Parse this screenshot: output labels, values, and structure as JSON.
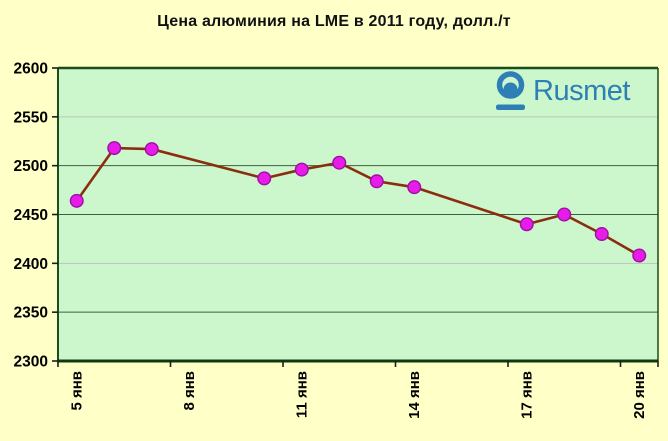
{
  "logo": {
    "text": "Rusmet"
  },
  "colors": {
    "page_bg": "#ffffc8",
    "plot_bg": "#ccf7cd",
    "plot_border": "#1a4d1a",
    "axis_line": "#10380f",
    "gridline_dark": "#3f5f3f",
    "gridline_light": "#b7c6b7",
    "tick": "#1c1c1c",
    "line": "#8b2e0f",
    "marker_fill": "#e81ce8",
    "marker_border": "#9c10a0",
    "logo_blue": "#2e7fb5"
  },
  "chart_data": {
    "type": "line",
    "title": "Цена алюминия на LME в 2011 году, долл./т",
    "xlabel": "",
    "ylabel": "долл./т",
    "legend": "none",
    "grid": "horizontal",
    "y_axis": {
      "min": 2300,
      "max": 2600,
      "step": 50,
      "tick_labels": [
        "2600",
        "2550",
        "2500",
        "2450",
        "2400",
        "2350",
        "2300"
      ]
    },
    "x_axis": {
      "slots": 16,
      "tick_label_slots": [
        0,
        3,
        6,
        9,
        12,
        15
      ],
      "tick_labels": [
        "5 янв",
        "8 янв",
        "11 янв",
        "14 янв",
        "17 янв",
        "20 янв"
      ]
    },
    "light_gridlines": [
      2550,
      2400
    ],
    "series_name": "Цена алюминия на LME, долл./т",
    "points": [
      {
        "slot": 0,
        "date": "5 янв",
        "value": 2464
      },
      {
        "slot": 1,
        "date": "6 янв",
        "value": 2518
      },
      {
        "slot": 2,
        "date": "7 янв",
        "value": 2517
      },
      {
        "slot": 5,
        "date": "10 янв",
        "value": 2487
      },
      {
        "slot": 6,
        "date": "11 янв",
        "value": 2496
      },
      {
        "slot": 7,
        "date": "12 янв",
        "value": 2503
      },
      {
        "slot": 8,
        "date": "13 янв",
        "value": 2484
      },
      {
        "slot": 9,
        "date": "14 янв",
        "value": 2478
      },
      {
        "slot": 12,
        "date": "17 янв",
        "value": 2440
      },
      {
        "slot": 13,
        "date": "18 янв",
        "value": 2450
      },
      {
        "slot": 14,
        "date": "19 янв",
        "value": 2430
      },
      {
        "slot": 15,
        "date": "20 янв",
        "value": 2408
      }
    ]
  }
}
